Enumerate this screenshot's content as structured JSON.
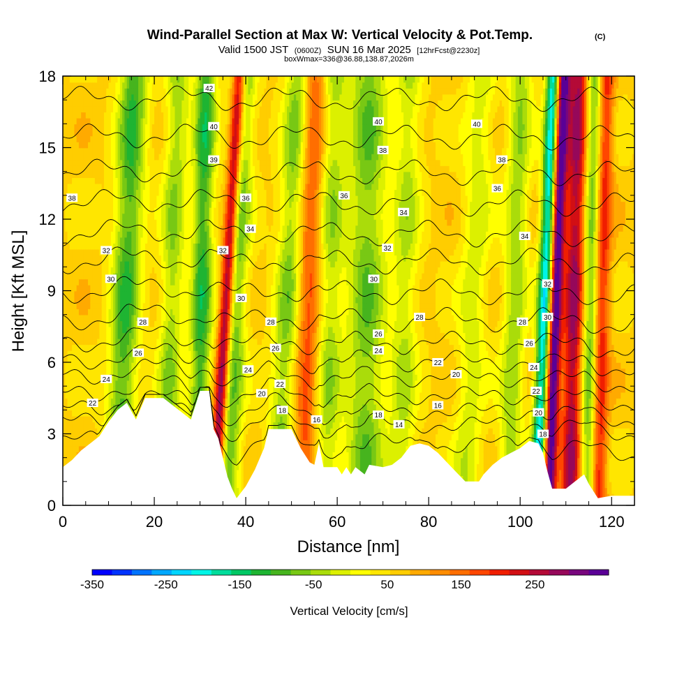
{
  "title": {
    "main": "Wind-Parallel Section at Max W: Vertical Velocity & Pot.Temp.",
    "copyright": "(C)",
    "valid_prefix": "Valid 1500 JST",
    "valid_utc": "(0600Z)",
    "valid_date": "SUN 16 Mar 2025",
    "forecast": "[12hrFcst@2230z]",
    "box": "boxWmax=336@36.88,138.87,2026m"
  },
  "chart_data": {
    "type": "heatmap",
    "xlabel": "Distance [nm]",
    "ylabel": "Height [Kft MSL]",
    "xlim": [
      0,
      125
    ],
    "ylim": [
      0,
      18
    ],
    "x_ticks": [
      0,
      20,
      40,
      60,
      80,
      100,
      120
    ],
    "y_ticks": [
      0,
      3,
      6,
      9,
      12,
      15,
      18
    ],
    "x_tick_labels": [
      "0",
      "20",
      "40",
      "60",
      "80",
      "100",
      "120"
    ],
    "y_tick_labels": [
      "0",
      "3",
      "6",
      "9",
      "12",
      "15",
      "18"
    ],
    "colorbar": {
      "label": "Vertical Velocity [cm/s]",
      "min": -350,
      "max": 350,
      "step": 25,
      "tick_values": [
        -350,
        -250,
        -150,
        -50,
        50,
        150,
        250
      ],
      "tick_labels": [
        "-350",
        "-250",
        "-150",
        "-50",
        "50",
        "150",
        "250"
      ],
      "colors": [
        "#0000ff",
        "#0033ff",
        "#0073ff",
        "#00a8ff",
        "#00d5ff",
        "#00f5e6",
        "#00dc9b",
        "#00c864",
        "#1eb432",
        "#46b41e",
        "#78c814",
        "#aadc0a",
        "#dcf000",
        "#ffff00",
        "#ffe600",
        "#ffcd00",
        "#ffaa00",
        "#ff8c00",
        "#ff6e00",
        "#ff4600",
        "#f01e00",
        "#d20f14",
        "#b40a37",
        "#96085a",
        "#78067d",
        "#5a0096"
      ]
    },
    "terrain": [
      [
        0,
        1.6
      ],
      [
        2,
        1.9
      ],
      [
        4,
        2.3
      ],
      [
        6,
        2.6
      ],
      [
        8,
        2.9
      ],
      [
        10,
        3.5
      ],
      [
        12,
        4.0
      ],
      [
        14,
        4.3
      ],
      [
        16,
        3.6
      ],
      [
        18,
        4.5
      ],
      [
        22,
        4.5
      ],
      [
        24,
        4.2
      ],
      [
        26,
        3.9
      ],
      [
        28,
        3.6
      ],
      [
        30,
        4.8
      ],
      [
        32,
        4.8
      ],
      [
        33,
        3.2
      ],
      [
        34,
        2.8
      ],
      [
        35,
        2.0
      ],
      [
        36,
        1.2
      ],
      [
        37,
        0.7
      ],
      [
        38,
        0.3
      ],
      [
        40,
        0.8
      ],
      [
        42,
        1.5
      ],
      [
        44,
        2.4
      ],
      [
        45,
        3.2
      ],
      [
        50,
        3.2
      ],
      [
        52,
        2.4
      ],
      [
        54,
        1.8
      ],
      [
        55,
        1.7
      ],
      [
        56,
        2.6
      ],
      [
        57,
        1.6
      ],
      [
        60,
        1.6
      ],
      [
        61,
        1.3
      ],
      [
        62,
        1.6
      ],
      [
        63,
        1.3
      ],
      [
        64,
        1.6
      ],
      [
        66,
        1.3
      ],
      [
        67,
        1.7
      ],
      [
        70,
        1.6
      ],
      [
        72,
        1.7
      ],
      [
        74,
        2.0
      ],
      [
        76,
        2.5
      ],
      [
        78,
        2.6
      ],
      [
        80,
        2.5
      ],
      [
        82,
        2.2
      ],
      [
        84,
        1.8
      ],
      [
        86,
        1.4
      ],
      [
        88,
        1.0
      ],
      [
        91,
        1.0
      ],
      [
        92,
        1.3
      ],
      [
        94,
        1.7
      ],
      [
        96,
        2.0
      ],
      [
        98,
        2.2
      ],
      [
        100,
        2.4
      ],
      [
        102,
        2.7
      ],
      [
        104,
        2.6
      ],
      [
        105,
        2.2
      ],
      [
        106,
        1.4
      ],
      [
        107,
        0.7
      ],
      [
        110,
        0.7
      ],
      [
        112,
        1.0
      ],
      [
        114,
        1.3
      ],
      [
        115,
        0.9
      ],
      [
        117,
        0.3
      ],
      [
        120,
        0.4
      ],
      [
        122,
        0.4
      ],
      [
        125,
        0.4
      ]
    ],
    "w_features": [
      {
        "x": 12.0,
        "drift": 0.2,
        "amp": -150,
        "width": 2.2
      },
      {
        "x": 22.5,
        "drift": 0.15,
        "amp": -100,
        "width": 1.8
      },
      {
        "x": 29.5,
        "drift": 0.1,
        "amp": -160,
        "width": 1.6
      },
      {
        "x": 33.2,
        "drift": 0.3,
        "amp": 250,
        "width": 1.0
      },
      {
        "x": 36.0,
        "drift": 0.2,
        "amp": -130,
        "width": 1.8
      },
      {
        "x": 47.0,
        "drift": 0.25,
        "amp": -110,
        "width": 2.0
      },
      {
        "x": 52.5,
        "drift": 0.15,
        "amp": 110,
        "width": 1.8
      },
      {
        "x": 57.5,
        "drift": 0.1,
        "amp": -90,
        "width": 2.0
      },
      {
        "x": 66.0,
        "drift": 0.05,
        "amp": -120,
        "width": 3.0
      },
      {
        "x": 74.0,
        "drift": 0.1,
        "amp": -80,
        "width": 2.0
      },
      {
        "x": 88.0,
        "drift": 0.2,
        "amp": -70,
        "width": 2.2
      },
      {
        "x": 97.5,
        "drift": 0.15,
        "amp": -100,
        "width": 1.8
      },
      {
        "x": 103.7,
        "drift": 0.2,
        "amp": -260,
        "width": 1.1
      },
      {
        "x": 106.2,
        "drift": 0.18,
        "amp": 290,
        "width": 1.0
      },
      {
        "x": 111.0,
        "drift": 0.1,
        "amp": 200,
        "width": 1.6
      },
      {
        "x": 114.5,
        "drift": 0.1,
        "amp": -140,
        "width": 1.4
      },
      {
        "x": 117.0,
        "drift": 0.1,
        "amp": 150,
        "width": 1.2
      }
    ],
    "theta_contours": [
      {
        "value": 14,
        "base": 2.1
      },
      {
        "value": 16,
        "base": 3.0
      },
      {
        "value": 18,
        "base": 3.6
      },
      {
        "value": 20,
        "base": 4.3
      },
      {
        "value": 22,
        "base": 5.1
      },
      {
        "value": 24,
        "base": 5.8
      },
      {
        "value": 26,
        "base": 6.6
      },
      {
        "value": 28,
        "base": 7.6
      },
      {
        "value": 30,
        "base": 8.8
      },
      {
        "value": 32,
        "base": 10.1
      },
      {
        "value": 34,
        "base": 11.3
      },
      {
        "value": 36,
        "base": 12.6
      },
      {
        "value": 38,
        "base": 13.9
      },
      {
        "value": 40,
        "base": 15.4
      },
      {
        "value": 42,
        "base": 17.0
      }
    ],
    "contour_labels": [
      {
        "text": "42",
        "x": 32,
        "y": 17.5
      },
      {
        "text": "40",
        "x": 33,
        "y": 15.9
      },
      {
        "text": "39",
        "x": 33,
        "y": 14.5
      },
      {
        "text": "38",
        "x": 2,
        "y": 12.9
      },
      {
        "text": "36",
        "x": 40,
        "y": 12.9
      },
      {
        "text": "34",
        "x": 41,
        "y": 11.6
      },
      {
        "text": "32",
        "x": 9.5,
        "y": 10.7
      },
      {
        "text": "32",
        "x": 35,
        "y": 10.7
      },
      {
        "text": "30",
        "x": 10.5,
        "y": 9.5
      },
      {
        "text": "30",
        "x": 39,
        "y": 8.7
      },
      {
        "text": "28",
        "x": 17.5,
        "y": 7.7
      },
      {
        "text": "28",
        "x": 45.5,
        "y": 7.7
      },
      {
        "text": "26",
        "x": 16.5,
        "y": 6.4
      },
      {
        "text": "26",
        "x": 46.5,
        "y": 6.6
      },
      {
        "text": "24",
        "x": 9.5,
        "y": 5.3
      },
      {
        "text": "24",
        "x": 40.5,
        "y": 5.7
      },
      {
        "text": "22",
        "x": 6.5,
        "y": 4.3
      },
      {
        "text": "22",
        "x": 47.5,
        "y": 5.1
      },
      {
        "text": "20",
        "x": 43.5,
        "y": 4.7
      },
      {
        "text": "18",
        "x": 48,
        "y": 4.0
      },
      {
        "text": "16",
        "x": 55.5,
        "y": 3.6
      },
      {
        "text": "18",
        "x": 69,
        "y": 3.8
      },
      {
        "text": "14",
        "x": 73.5,
        "y": 3.4
      },
      {
        "text": "40",
        "x": 69,
        "y": 16.1
      },
      {
        "text": "38",
        "x": 70,
        "y": 14.9
      },
      {
        "text": "36",
        "x": 61.5,
        "y": 13.0
      },
      {
        "text": "34",
        "x": 74.5,
        "y": 12.3
      },
      {
        "text": "32",
        "x": 71,
        "y": 10.8
      },
      {
        "text": "30",
        "x": 68,
        "y": 9.5
      },
      {
        "text": "28",
        "x": 78,
        "y": 7.9
      },
      {
        "text": "26",
        "x": 69,
        "y": 7.2
      },
      {
        "text": "24",
        "x": 69,
        "y": 6.5
      },
      {
        "text": "22",
        "x": 82,
        "y": 6.0
      },
      {
        "text": "20",
        "x": 86,
        "y": 5.5
      },
      {
        "text": "16",
        "x": 82,
        "y": 4.2
      },
      {
        "text": "40",
        "x": 90.5,
        "y": 16.0
      },
      {
        "text": "38",
        "x": 96,
        "y": 14.5
      },
      {
        "text": "36",
        "x": 95,
        "y": 13.3
      },
      {
        "text": "34",
        "x": 101,
        "y": 11.3
      },
      {
        "text": "32",
        "x": 106,
        "y": 9.3
      },
      {
        "text": "30",
        "x": 106,
        "y": 7.9
      },
      {
        "text": "28",
        "x": 100.5,
        "y": 7.7
      },
      {
        "text": "26",
        "x": 102,
        "y": 6.8
      },
      {
        "text": "24",
        "x": 103,
        "y": 5.8
      },
      {
        "text": "22",
        "x": 103.5,
        "y": 4.8
      },
      {
        "text": "20",
        "x": 104,
        "y": 3.9
      },
      {
        "text": "18",
        "x": 105,
        "y": 3.0
      }
    ]
  }
}
